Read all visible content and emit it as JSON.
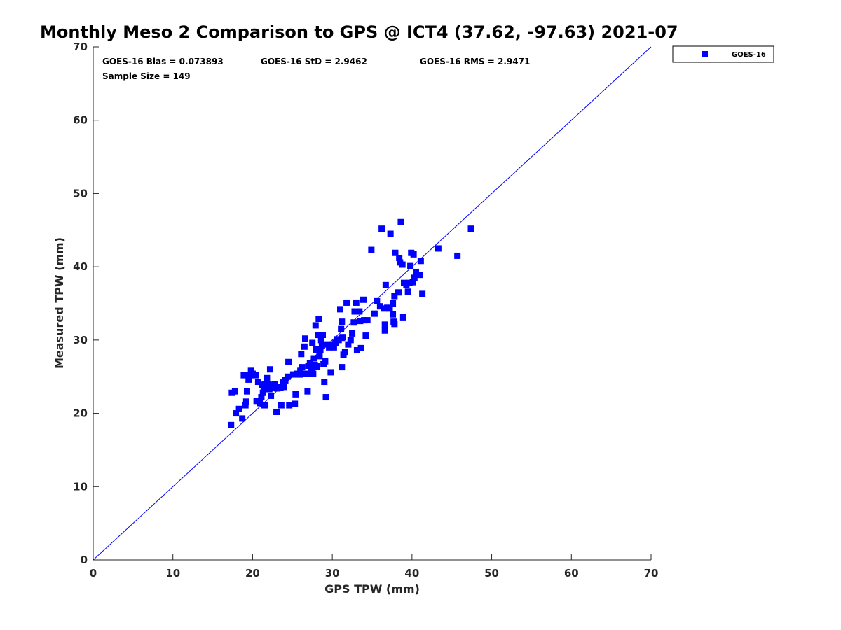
{
  "chart_data": {
    "type": "scatter",
    "title": "Monthly Meso 2 Comparison to GPS @ ICT4 (37.62, -97.63) 2021-07",
    "xlabel": "GPS TPW (mm)",
    "ylabel": "Measured TPW (mm)",
    "xlim": [
      0,
      70
    ],
    "ylim": [
      0,
      70
    ],
    "xticks": [
      0,
      10,
      20,
      30,
      40,
      50,
      60,
      70
    ],
    "yticks": [
      0,
      10,
      20,
      30,
      40,
      50,
      60,
      70
    ],
    "grid": false,
    "legend_position": "outside-top-right",
    "reference_line": {
      "x": [
        0,
        70
      ],
      "y": [
        0,
        70
      ],
      "color": "#0000ff"
    },
    "stats": {
      "bias": "GOES-16 Bias = 0.073893",
      "std": "GOES-16 StD = 2.9462",
      "rms": "GOES-16 RMS = 2.9471",
      "sample_size": "Sample Size = 149"
    },
    "series": [
      {
        "name": "GOES-16",
        "color": "#0000ff",
        "marker": "square",
        "points": [
          [
            17.3,
            18.4
          ],
          [
            17.4,
            22.8
          ],
          [
            17.8,
            23.0
          ],
          [
            17.9,
            20.0
          ],
          [
            18.3,
            20.6
          ],
          [
            18.7,
            19.3
          ],
          [
            18.9,
            25.2
          ],
          [
            19.1,
            21.1
          ],
          [
            19.2,
            21.6
          ],
          [
            19.3,
            23.0
          ],
          [
            19.5,
            24.6
          ],
          [
            19.7,
            25.2
          ],
          [
            19.8,
            25.8
          ],
          [
            20.0,
            25.4
          ],
          [
            20.4,
            25.2
          ],
          [
            20.5,
            21.7
          ],
          [
            20.7,
            24.3
          ],
          [
            20.9,
            21.4
          ],
          [
            21.1,
            22.2
          ],
          [
            21.2,
            23.9
          ],
          [
            21.3,
            22.8
          ],
          [
            21.4,
            23.4
          ],
          [
            21.5,
            21.1
          ],
          [
            21.6,
            24.0
          ],
          [
            21.8,
            24.8
          ],
          [
            21.9,
            23.6
          ],
          [
            22.0,
            24.0
          ],
          [
            22.1,
            23.3
          ],
          [
            22.2,
            26.0
          ],
          [
            22.3,
            22.4
          ],
          [
            22.4,
            23.8
          ],
          [
            22.6,
            23.5
          ],
          [
            22.8,
            24.0
          ],
          [
            23.0,
            20.2
          ],
          [
            23.2,
            23.6
          ],
          [
            23.5,
            23.5
          ],
          [
            23.6,
            21.1
          ],
          [
            23.8,
            24.2
          ],
          [
            23.9,
            23.6
          ],
          [
            24.1,
            24.5
          ],
          [
            24.4,
            25.0
          ],
          [
            24.5,
            27.0
          ],
          [
            24.6,
            21.1
          ],
          [
            25.1,
            25.3
          ],
          [
            25.3,
            21.3
          ],
          [
            25.4,
            22.6
          ],
          [
            25.6,
            25.4
          ],
          [
            25.9,
            25.3
          ],
          [
            26.0,
            25.8
          ],
          [
            26.1,
            28.1
          ],
          [
            26.2,
            26.3
          ],
          [
            26.3,
            25.4
          ],
          [
            26.5,
            29.1
          ],
          [
            26.6,
            30.2
          ],
          [
            26.8,
            25.4
          ],
          [
            26.9,
            23.0
          ],
          [
            27.0,
            26.5
          ],
          [
            27.2,
            26.8
          ],
          [
            27.4,
            26.0
          ],
          [
            27.5,
            29.6
          ],
          [
            27.6,
            25.4
          ],
          [
            27.7,
            27.5
          ],
          [
            27.8,
            26.6
          ],
          [
            27.9,
            32.0
          ],
          [
            28.0,
            28.7
          ],
          [
            28.1,
            26.4
          ],
          [
            28.2,
            30.7
          ],
          [
            28.3,
            32.9
          ],
          [
            28.5,
            28.6
          ],
          [
            28.6,
            30.0
          ],
          [
            28.7,
            29.2
          ],
          [
            28.8,
            30.7
          ],
          [
            28.9,
            26.7
          ],
          [
            29.0,
            24.3
          ],
          [
            29.1,
            27.1
          ],
          [
            29.2,
            22.2
          ],
          [
            29.4,
            29.4
          ],
          [
            29.6,
            29.0
          ],
          [
            29.8,
            25.6
          ],
          [
            30.0,
            29.4
          ],
          [
            30.2,
            29.0
          ],
          [
            30.4,
            29.6
          ],
          [
            30.6,
            30.1
          ],
          [
            30.8,
            30.0
          ],
          [
            31.0,
            34.2
          ],
          [
            31.1,
            31.5
          ],
          [
            31.2,
            32.5
          ],
          [
            31.3,
            30.4
          ],
          [
            31.2,
            26.3
          ],
          [
            31.4,
            28.0
          ],
          [
            31.6,
            28.4
          ],
          [
            31.8,
            35.1
          ],
          [
            32.0,
            29.4
          ],
          [
            32.3,
            30.0
          ],
          [
            32.5,
            30.9
          ],
          [
            32.7,
            32.4
          ],
          [
            32.8,
            33.9
          ],
          [
            33.0,
            35.1
          ],
          [
            33.1,
            28.6
          ],
          [
            33.4,
            33.9
          ],
          [
            33.5,
            32.6
          ],
          [
            33.6,
            28.9
          ],
          [
            33.9,
            35.5
          ],
          [
            34.0,
            32.7
          ],
          [
            34.2,
            30.6
          ],
          [
            34.4,
            32.7
          ],
          [
            34.9,
            42.3
          ],
          [
            35.3,
            33.6
          ],
          [
            35.6,
            35.3
          ],
          [
            36.0,
            34.6
          ],
          [
            36.2,
            45.2
          ],
          [
            36.5,
            34.3
          ],
          [
            36.6,
            32.1
          ],
          [
            36.6,
            31.3
          ],
          [
            36.7,
            37.5
          ],
          [
            36.9,
            34.4
          ],
          [
            37.2,
            34.3
          ],
          [
            37.3,
            44.5
          ],
          [
            37.6,
            35.0
          ],
          [
            37.6,
            33.5
          ],
          [
            37.7,
            32.5
          ],
          [
            37.8,
            32.2
          ],
          [
            37.8,
            36.0
          ],
          [
            37.9,
            41.9
          ],
          [
            38.3,
            36.5
          ],
          [
            38.4,
            41.2
          ],
          [
            38.5,
            40.6
          ],
          [
            38.6,
            46.1
          ],
          [
            38.8,
            40.3
          ],
          [
            38.9,
            33.1
          ],
          [
            39.0,
            37.8
          ],
          [
            39.3,
            37.5
          ],
          [
            39.5,
            36.6
          ],
          [
            39.7,
            37.8
          ],
          [
            39.8,
            40.1
          ],
          [
            39.9,
            41.9
          ],
          [
            40.1,
            37.9
          ],
          [
            40.2,
            41.7
          ],
          [
            40.3,
            38.5
          ],
          [
            40.5,
            39.3
          ],
          [
            41.0,
            38.9
          ],
          [
            41.1,
            40.8
          ],
          [
            41.3,
            36.3
          ],
          [
            43.3,
            42.5
          ],
          [
            45.7,
            41.5
          ],
          [
            47.4,
            45.2
          ],
          [
            31.2,
            30.3
          ],
          [
            28.4,
            27.8
          ],
          [
            23.1,
            23.4
          ]
        ]
      }
    ]
  }
}
